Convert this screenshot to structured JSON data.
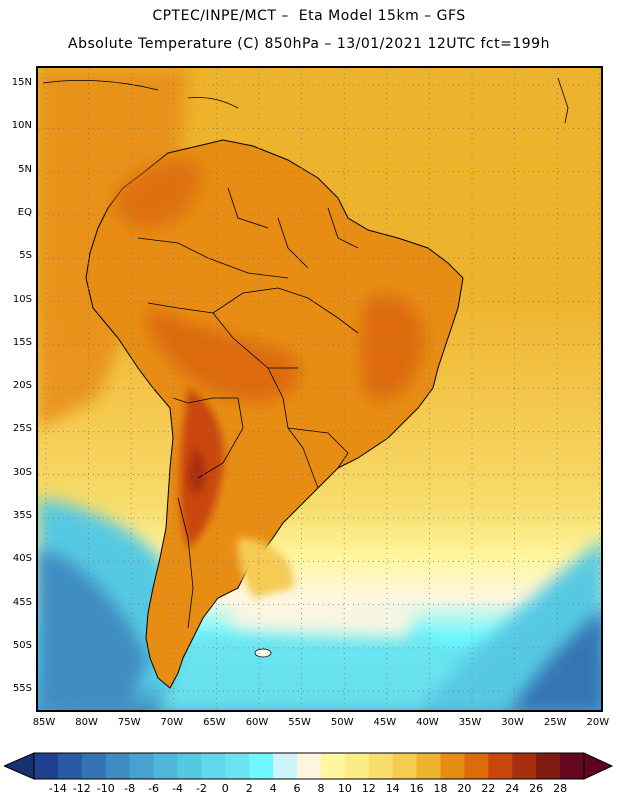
{
  "header": {
    "line1": "CPTEC/INPE/MCT –  Eta Model 15km – GFS",
    "line2": "Absolute Temperature (C) 850hPa – 13/01/2021 12UTC fct=199h"
  },
  "map": {
    "region": "South America",
    "lat_labels": [
      "15N",
      "10N",
      "5N",
      "EQ",
      "5S",
      "10S",
      "15S",
      "20S",
      "25S",
      "30S",
      "35S",
      "40S",
      "45S",
      "50S",
      "55S"
    ],
    "lon_labels": [
      "85W",
      "80W",
      "75W",
      "70W",
      "65W",
      "60W",
      "55W",
      "50W",
      "45W",
      "40W",
      "35W",
      "30W",
      "25W",
      "20W"
    ],
    "gridlines": "dotted"
  },
  "colorbar": {
    "ticks": [
      "-14",
      "-12",
      "-10",
      "-8",
      "-6",
      "-4",
      "-2",
      "0",
      "2",
      "4",
      "6",
      "8",
      "10",
      "12",
      "14",
      "16",
      "18",
      "20",
      "22",
      "24",
      "26",
      "28"
    ],
    "colors": [
      "#1f3f8f",
      "#2a5aa6",
      "#3474b5",
      "#3f8cc3",
      "#46a2cf",
      "#4fb7da",
      "#56c9e2",
      "#5ed8ea",
      "#6ae4f0",
      "#6ff8ff",
      "#cdf4fb",
      "#fff6e0",
      "#fff7a0",
      "#fcec84",
      "#f7dd6c",
      "#f5cb52",
      "#eeb32c",
      "#e88d14",
      "#dd6a0c",
      "#c9460c",
      "#a72f0f",
      "#7e1b12",
      "#64061f"
    ],
    "under_color": "#17306f",
    "over_color": "#5e0521"
  }
}
